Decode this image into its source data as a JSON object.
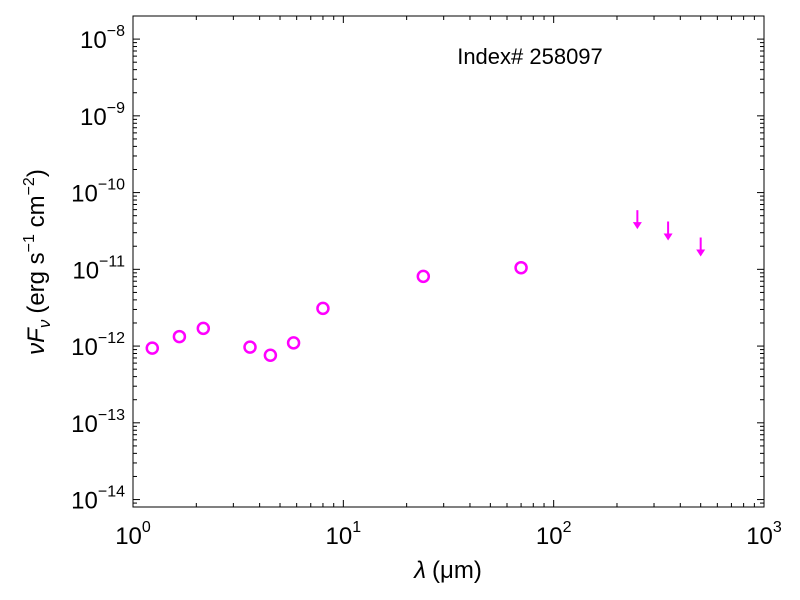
{
  "chart_data": {
    "type": "scatter",
    "annotation": "Index# 258097",
    "xlabel": {
      "symbol": "λ",
      "unit": "(μm)"
    },
    "ylabel": {
      "symbol": "νF",
      "subscript": "ν",
      "unit_open": "(erg s",
      "unit_mid": " cm",
      "unit_close": ")",
      "exp1": "−1",
      "exp2": "−2"
    },
    "x_scale": "log",
    "y_scale": "log",
    "xlim": [
      1,
      1000
    ],
    "ylim": [
      8e-15,
      2e-08
    ],
    "x_ticks": [
      {
        "value": 1,
        "base": "10",
        "exp": "0"
      },
      {
        "value": 10,
        "base": "10",
        "exp": "1"
      },
      {
        "value": 100,
        "base": "10",
        "exp": "2"
      },
      {
        "value": 1000,
        "base": "10",
        "exp": "3"
      }
    ],
    "y_ticks": [
      {
        "value": 1e-14,
        "base": "10",
        "exp": "−14"
      },
      {
        "value": 1e-13,
        "base": "10",
        "exp": "−13"
      },
      {
        "value": 1e-12,
        "base": "10",
        "exp": "−12"
      },
      {
        "value": 1e-11,
        "base": "10",
        "exp": "−11"
      },
      {
        "value": 1e-10,
        "base": "10",
        "exp": "−10"
      },
      {
        "value": 1e-09,
        "base": "10",
        "exp": "−9"
      },
      {
        "value": 1e-08,
        "base": "10",
        "exp": "−8"
      }
    ],
    "grid": false,
    "marker_color": "#ff00ff",
    "detections": [
      {
        "x": 1.235,
        "y": 9.4e-13
      },
      {
        "x": 1.662,
        "y": 1.33e-12
      },
      {
        "x": 2.159,
        "y": 1.7e-12
      },
      {
        "x": 3.6,
        "y": 9.7e-13
      },
      {
        "x": 4.5,
        "y": 7.6e-13
      },
      {
        "x": 5.8,
        "y": 1.1e-12
      },
      {
        "x": 8.0,
        "y": 3.1e-12
      },
      {
        "x": 24,
        "y": 8.1e-12
      },
      {
        "x": 70,
        "y": 1.05e-11
      }
    ],
    "upper_limits": [
      {
        "x": 250,
        "y": 5.9e-11
      },
      {
        "x": 350,
        "y": 4.2e-11
      },
      {
        "x": 500,
        "y": 2.6e-11
      }
    ]
  }
}
